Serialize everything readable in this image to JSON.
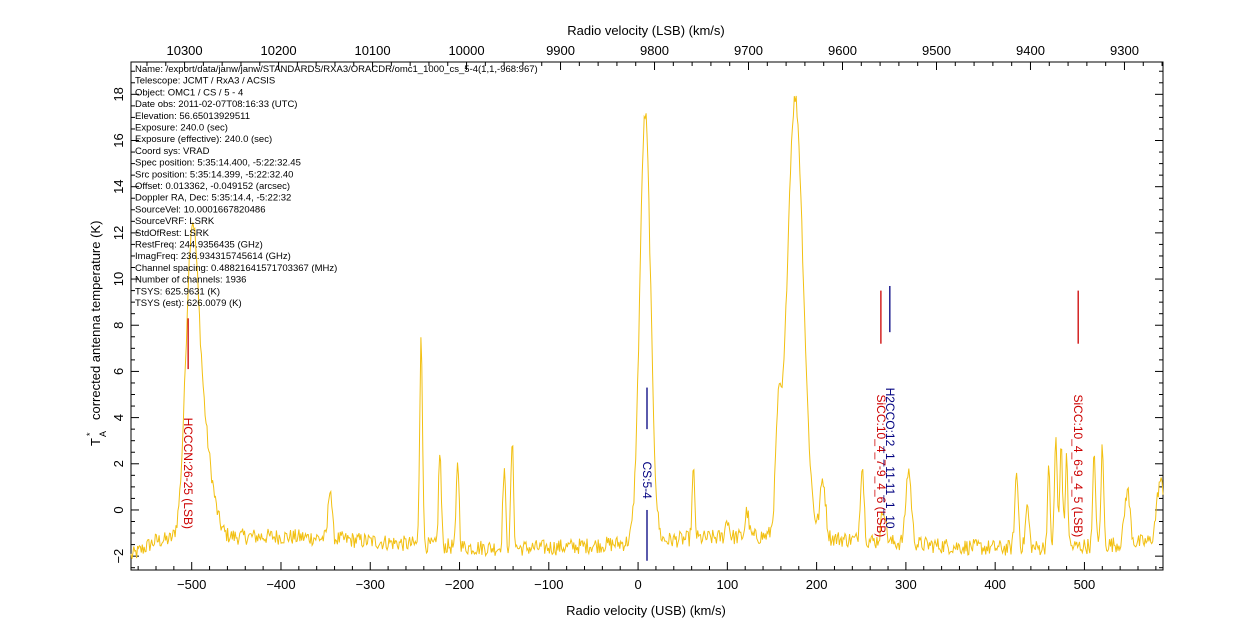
{
  "chart_data": {
    "type": "line",
    "xlabel": "Radio velocity (USB) (km/s)",
    "x2label": "Radio velocity (LSB) (km/s)",
    "ylabel": "corrected antenna temperature (K)",
    "ylabel_symbol": "T",
    "ylabel_sub": "A",
    "ylabel_sup": "*",
    "xlim": [
      -568,
      588
    ],
    "ylim": [
      -2.6,
      19.4
    ],
    "x2lim": [
      10357,
      9259
    ],
    "xticks": [
      -500,
      -400,
      -300,
      -200,
      -100,
      0,
      100,
      200,
      300,
      400,
      500
    ],
    "x2ticks": [
      10300,
      10200,
      10100,
      10000,
      9900,
      9800,
      9700,
      9600,
      9500,
      9400,
      9300
    ],
    "yticks": [
      -2,
      0,
      2,
      4,
      6,
      8,
      10,
      12,
      14,
      16,
      18
    ],
    "series": [
      {
        "color": "#f2c012",
        "baseline": -1.4,
        "noise": 0.35,
        "peaks": [
          {
            "x": -500,
            "height": 11.4,
            "width": 7
          },
          {
            "x": -488,
            "height": 4.5,
            "width": 10
          },
          {
            "x": -345,
            "height": 2.3,
            "width": 2
          },
          {
            "x": -243,
            "height": 9.3,
            "width": 1.5
          },
          {
            "x": -222,
            "height": 4.1,
            "width": 1.5
          },
          {
            "x": -202,
            "height": 3.8,
            "width": 1.5
          },
          {
            "x": -150,
            "height": 3.5,
            "width": 1.5
          },
          {
            "x": -141,
            "height": 4.6,
            "width": 1.5
          },
          {
            "x": 8,
            "height": 18.5,
            "width": 6
          },
          {
            "x": 62,
            "height": 2.9,
            "width": 1.5
          },
          {
            "x": 100,
            "height": 0.8,
            "width": 2
          },
          {
            "x": 122,
            "height": 1.1,
            "width": 2
          },
          {
            "x": 157,
            "height": 4.0,
            "width": 3
          },
          {
            "x": 176,
            "height": 19.0,
            "width": 9
          },
          {
            "x": 207,
            "height": 2.5,
            "width": 3
          },
          {
            "x": 251,
            "height": 3.3,
            "width": 2
          },
          {
            "x": 275,
            "height": 1.5,
            "width": 2.5
          },
          {
            "x": 303,
            "height": 3.2,
            "width": 3
          },
          {
            "x": 424,
            "height": 3.2,
            "width": 2
          },
          {
            "x": 436,
            "height": 1.8,
            "width": 2
          },
          {
            "x": 460,
            "height": 3.3,
            "width": 1.5
          },
          {
            "x": 468,
            "height": 4.8,
            "width": 1.5
          },
          {
            "x": 474,
            "height": 4.5,
            "width": 1.5
          },
          {
            "x": 480,
            "height": 3.8,
            "width": 1.5
          },
          {
            "x": 511,
            "height": 4.0,
            "width": 1.5
          },
          {
            "x": 520,
            "height": 4.2,
            "width": 1.5
          },
          {
            "x": 548,
            "height": 2.3,
            "width": 3
          },
          {
            "x": 585,
            "height": 2.6,
            "width": 4
          }
        ]
      }
    ],
    "line_markers": [
      {
        "label": "HCCCN:26-25 (LSB)",
        "x": -504,
        "color": "#cc0000",
        "y_top": 8.3,
        "y_bottom": 6.1,
        "label_y_top": 4.0
      },
      {
        "label": "CS:5-4",
        "x": 10,
        "color": "#000080",
        "y_top": 5.3,
        "y_bottom": 3.5,
        "y2_top": 0.0,
        "y2_bottom": -2.2,
        "label_y_top": 2.1
      },
      {
        "label": "SiCC:10_4_7-9_4_6 (LSB)",
        "x": 272,
        "color": "#cc0000",
        "y_top": 9.5,
        "y_bottom": 7.2,
        "label_y_top": 5.0
      },
      {
        "label": "H2CCO:12_1_11-11_1_10",
        "x": 282,
        "color": "#000080",
        "y_top": 9.7,
        "y_bottom": 7.7,
        "label_y_top": 5.3
      },
      {
        "label": "SiCC:10_4_6-9_4_5 (LSB)",
        "x": 493,
        "color": "#cc0000",
        "y_top": 9.5,
        "y_bottom": 7.2,
        "label_y_top": 5.0
      }
    ],
    "metadata_lines": [
      "Name: /export/data/janw/janw/STANDARDS/RXA3/ORACDR/omc1_1000_cs_5-4(1,1,-968:967)",
      "Telescope: JCMT / RxA3 / ACSIS",
      "Object: OMC1 / CS / 5 - 4",
      "Date obs: 2011-02-07T08:16:33 (UTC)",
      "Elevation: 56.65013929511",
      "Exposure: 240.0 (sec)",
      "Exposure (effective): 240.0 (sec)",
      "Coord sys: VRAD",
      "Spec position: 5:35:14.400, -5:22:32.45",
      "Src position: 5:35:14.399, -5:22:32.40",
      "Offset: 0.013362, -0.049152 (arcsec)",
      "Doppler RA, Dec: 5:35:14.4, -5:22:32",
      "SourceVel: 10.0001667820486",
      "SourceVRF: LSRK",
      "StdOfRest: LSRK",
      "RestFreq: 244.9356435 (GHz)",
      "ImagFreq: 236.934315745614 (GHz)",
      "Channel spacing: 0.48821641571703367 (MHz)",
      "Number of channels: 1936",
      "TSYS: 625.9631 (K)",
      "TSYS (est): 626.0079 (K)"
    ]
  }
}
